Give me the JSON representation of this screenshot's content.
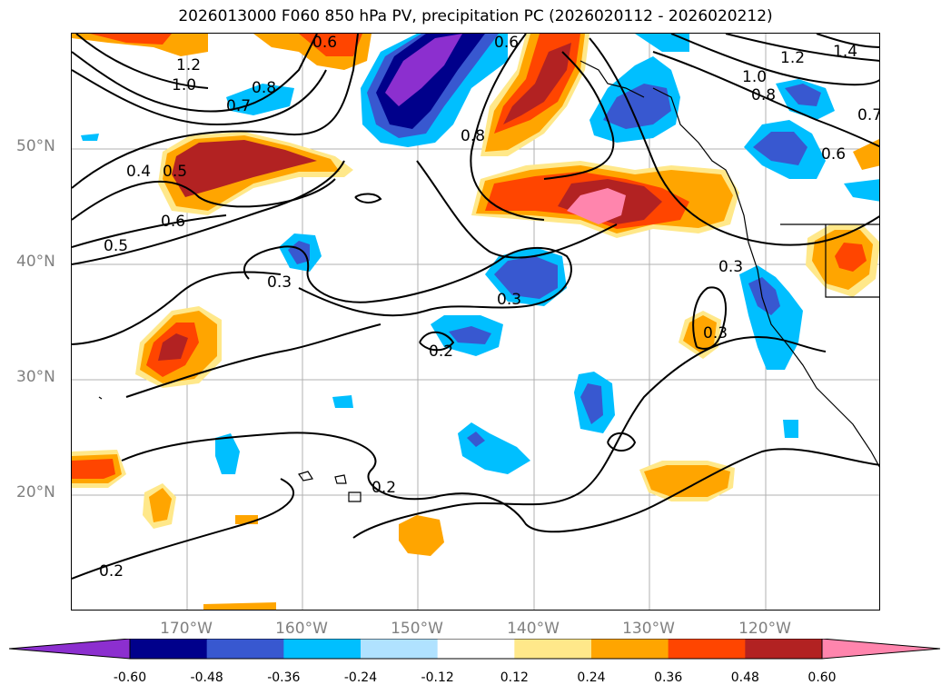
{
  "title": "2026013000 F060 850 hPa PV, precipitation PC (2026020112 - 2026020212)",
  "lat_labels": [
    "50°N",
    "40°N",
    "30°N",
    "20°N"
  ],
  "lon_labels": [
    "170°W",
    "160°W",
    "150°W",
    "140°W",
    "130°W",
    "120°W"
  ],
  "colorbar": {
    "tick_labels": [
      "-0.60",
      "-0.48",
      "-0.36",
      "-0.24",
      "-0.12",
      "0.12",
      "0.24",
      "0.36",
      "0.48",
      "0.60"
    ],
    "colors": [
      "#8c2fcf",
      "#00008b",
      "#3858d0",
      "#00bfff",
      "#b0e2ff",
      "#ffffff",
      "#ffe88a",
      "#ffa500",
      "#ff4500",
      "#b22222",
      "#ff85ad"
    ]
  },
  "contour_labels": [
    "1.2",
    "1.0",
    "0.8",
    "0.7",
    "0.6",
    "0.5",
    "0.4",
    "0.5",
    "0.6",
    "0.3",
    "0.3",
    "0.2",
    "0.2",
    "0.2",
    "0.8",
    "0.6",
    "1.0",
    "0.8",
    "1.2",
    "1.4",
    "0.7",
    "0.6",
    "0.3",
    "0.3"
  ]
}
